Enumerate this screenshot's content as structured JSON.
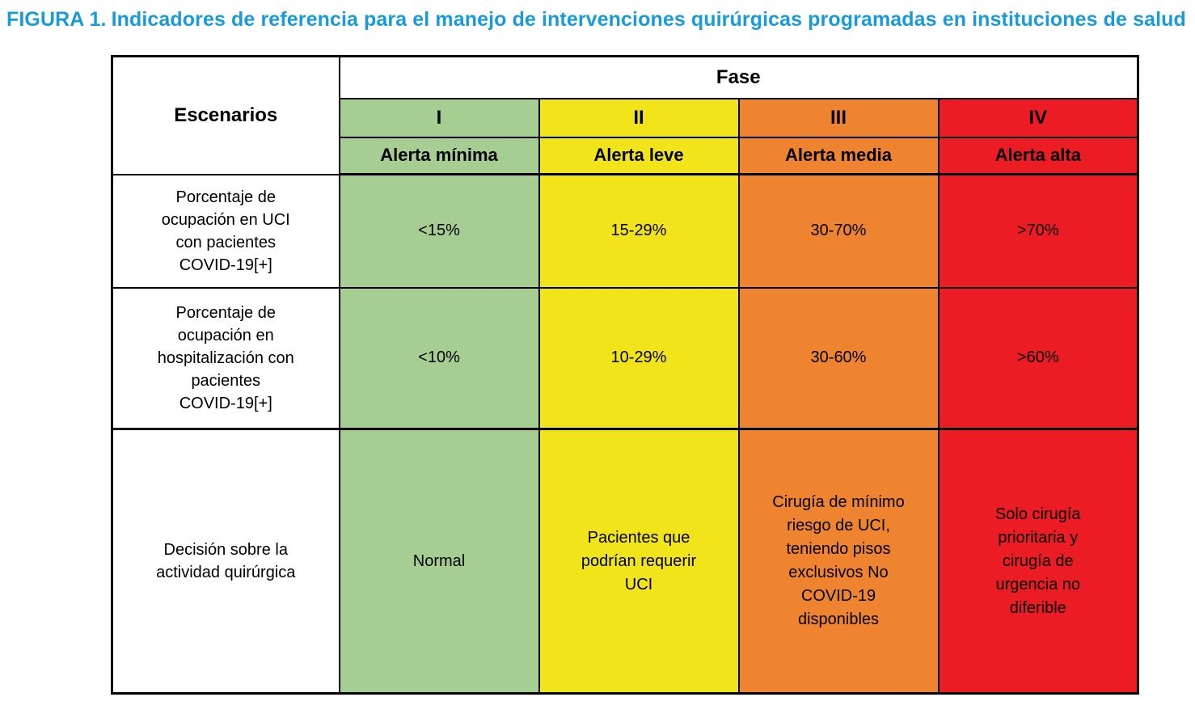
{
  "figure": {
    "label": "FIGURA 1.",
    "title": "Indicadores de referencia para el manejo de intervenciones quirúrgicas programadas en instituciones de salud"
  },
  "colors": {
    "title_blue": "#1a9bd7",
    "phase1_green": "#a7ce92",
    "phase2_yellow": "#f2e41b",
    "phase3_orange": "#ef8430",
    "phase4_red": "#eb1c24"
  },
  "table": {
    "corner_header": "Escenarios",
    "fase_header": "Fase",
    "phases": [
      {
        "numeral": "I",
        "alert": "Alerta mínima"
      },
      {
        "numeral": "II",
        "alert": "Alerta leve"
      },
      {
        "numeral": "III",
        "alert": "Alerta media"
      },
      {
        "numeral": "IV",
        "alert": "Alerta alta"
      }
    ],
    "rows": [
      {
        "label": "Porcentaje de\nocupación en UCI\ncon pacientes\nCOVID-19[+]",
        "values": [
          "<15%",
          "15-29%",
          "30-70%",
          ">70%"
        ]
      },
      {
        "label": "Porcentaje de\nocupación en\nhospitalización con\npacientes\nCOVID-19[+]",
        "values": [
          "<10%",
          "10-29%",
          "30-60%",
          ">60%"
        ]
      },
      {
        "label": "Decisión sobre la\nactividad quirúrgica",
        "values": [
          "Normal",
          "Pacientes que\npodrían requerir\nUCI",
          "Cirugía de mínimo\nriesgo de UCI,\nteniendo pisos\nexclusivos No\nCOVID-19\ndisponibles",
          "Solo cirugía\nprioritaria y\ncirugía de\nurgencia no\ndiferible"
        ]
      }
    ]
  }
}
